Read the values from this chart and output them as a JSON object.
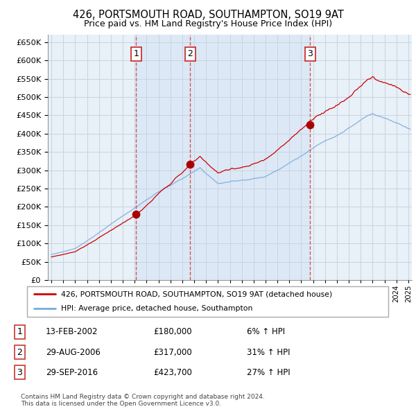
{
  "title": "426, PORTSMOUTH ROAD, SOUTHAMPTON, SO19 9AT",
  "subtitle": "Price paid vs. HM Land Registry's House Price Index (HPI)",
  "legend_label_red": "426, PORTSMOUTH ROAD, SOUTHAMPTON, SO19 9AT (detached house)",
  "legend_label_blue": "HPI: Average price, detached house, Southampton",
  "footer1": "Contains HM Land Registry data © Crown copyright and database right 2024.",
  "footer2": "This data is licensed under the Open Government Licence v3.0.",
  "transactions": [
    {
      "num": 1,
      "date": "13-FEB-2002",
      "price": 180000,
      "hpi_pct": "6%",
      "direction": "↑"
    },
    {
      "num": 2,
      "date": "29-AUG-2006",
      "price": 317000,
      "hpi_pct": "31%",
      "direction": "↑"
    },
    {
      "num": 3,
      "date": "29-SEP-2016",
      "price": 423700,
      "hpi_pct": "27%",
      "direction": "↑"
    }
  ],
  "transaction_years": [
    2002.12,
    2006.66,
    2016.75
  ],
  "transaction_prices": [
    180000,
    317000,
    423700
  ],
  "vline_years": [
    2002.12,
    2006.66,
    2016.75
  ],
  "ylim": [
    0,
    670000
  ],
  "yticks": [
    0,
    50000,
    100000,
    150000,
    200000,
    250000,
    300000,
    350000,
    400000,
    450000,
    500000,
    550000,
    600000,
    650000
  ],
  "xlim_start": 1994.7,
  "xlim_end": 2025.3,
  "background_color": "#ffffff",
  "chart_bg_color": "#e8f0f8",
  "grid_color": "#c8d4e0",
  "red_color": "#cc0000",
  "blue_color": "#7aaadd",
  "vline_color": "#cc3333",
  "marker_color": "#aa0000",
  "shade_color": "#dce8f5"
}
